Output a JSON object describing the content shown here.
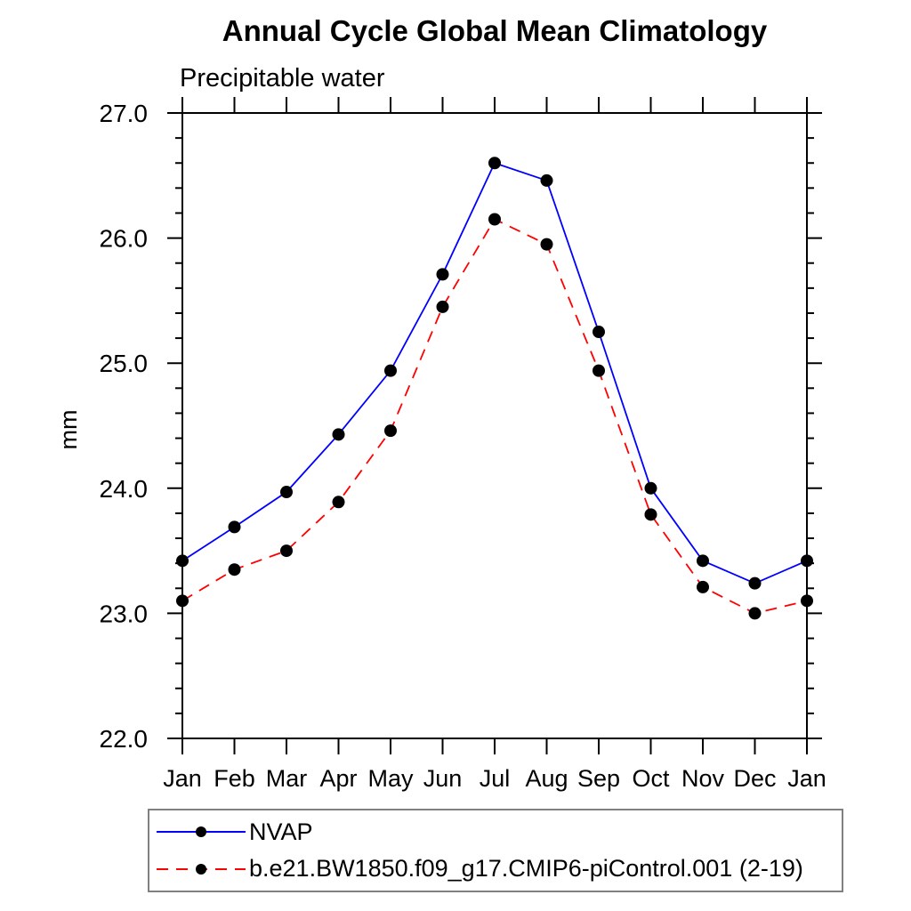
{
  "page": {
    "background_color": "#ffffff",
    "text_color": "#000000",
    "legend_border_color": "#808080"
  },
  "chart_data": {
    "type": "line",
    "title": "Annual Cycle Global Mean Climatology",
    "subtitle": "Precipitable water",
    "ylabel": "mm",
    "xlabel": "",
    "categories": [
      "Jan",
      "Feb",
      "Mar",
      "Apr",
      "May",
      "Jun",
      "Jul",
      "Aug",
      "Sep",
      "Oct",
      "Nov",
      "Dec",
      "Jan"
    ],
    "ylim": [
      22.0,
      27.0
    ],
    "ytick_major_step": 1.0,
    "ytick_minor_step": 0.2,
    "ytick_labels": [
      "22.0",
      "23.0",
      "24.0",
      "25.0",
      "26.0",
      "27.0"
    ],
    "grid": false,
    "axis_color": "#000000",
    "marker_color": "#000000",
    "marker_shape": "filled-circle",
    "legend_position": "bottom-left",
    "series": [
      {
        "name": "NVAP",
        "color": "#0000ff",
        "line_style": "solid",
        "marker": "filled-circle",
        "values": [
          23.42,
          23.69,
          23.97,
          24.43,
          24.94,
          25.71,
          26.6,
          26.46,
          25.25,
          24.0,
          23.42,
          23.24,
          23.42
        ]
      },
      {
        "name": "b.e21.BW1850.f09_g17.CMIP6-piControl.001 (2-19)",
        "color": "#ff0000",
        "line_style": "dashed",
        "marker": "filled-circle",
        "values": [
          23.1,
          23.35,
          23.5,
          23.89,
          24.46,
          25.45,
          26.15,
          25.95,
          24.94,
          23.79,
          23.21,
          23.0,
          23.1
        ]
      }
    ]
  }
}
